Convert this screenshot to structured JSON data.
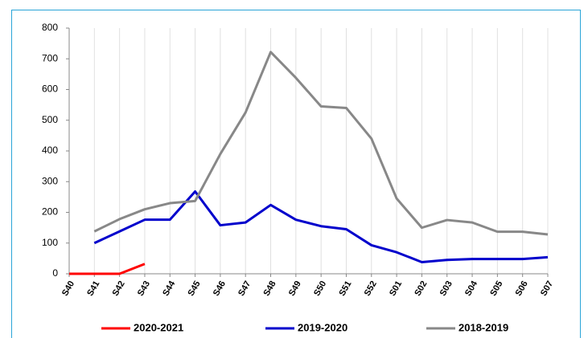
{
  "chart_data": {
    "type": "line",
    "categories": [
      "S40",
      "S41",
      "S42",
      "S43",
      "S44",
      "S45",
      "S46",
      "S47",
      "S48",
      "S49",
      "S50",
      "S51",
      "S52",
      "S01",
      "S02",
      "S03",
      "S04",
      "S05",
      "S06",
      "S07"
    ],
    "series": [
      {
        "name": "2020-2021",
        "color": "#ff0000",
        "values": [
          0,
          0,
          0,
          32,
          null,
          null,
          null,
          null,
          null,
          null,
          null,
          null,
          null,
          null,
          null,
          null,
          null,
          null,
          null,
          null
        ]
      },
      {
        "name": "2019-2020",
        "color": "#0000cc",
        "values": [
          null,
          100,
          138,
          176,
          176,
          268,
          158,
          167,
          224,
          176,
          155,
          145,
          93,
          70,
          38,
          45,
          48,
          48,
          48,
          54
        ]
      },
      {
        "name": "2018-2019",
        "color": "#888888",
        "values": [
          null,
          138,
          178,
          210,
          230,
          237,
          390,
          525,
          722,
          638,
          545,
          540,
          440,
          245,
          150,
          175,
          167,
          137,
          137,
          128
        ]
      }
    ],
    "ylim": [
      0,
      800
    ],
    "yticks": [
      0,
      100,
      200,
      300,
      400,
      500,
      600,
      700,
      800
    ],
    "grid": true
  }
}
